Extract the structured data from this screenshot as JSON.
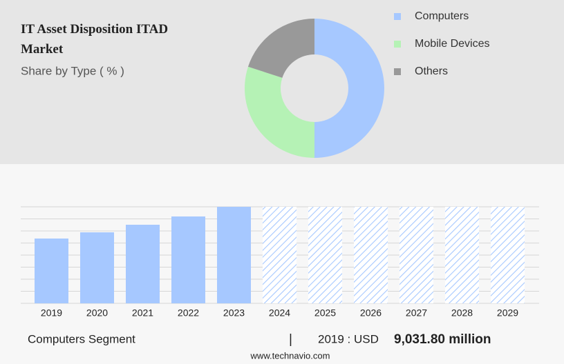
{
  "chart_data": [
    {
      "type": "donut",
      "title": "IT Asset Disposition ITAD Market",
      "subtitle": "Share by Type ( % )",
      "categories": [
        "Computers",
        "Mobile Devices",
        "Others"
      ],
      "values": [
        50,
        30,
        20
      ],
      "colors": [
        "#a6c8ff",
        "#b5f2b5",
        "#999999"
      ],
      "legend": "top-right"
    },
    {
      "type": "bar",
      "categories": [
        "2019",
        "2020",
        "2021",
        "2022",
        "2023",
        "2024",
        "2025",
        "2026",
        "2027",
        "2028",
        "2029"
      ],
      "values": [
        9031.8,
        9896,
        10953,
        12106,
        13451,
        null,
        null,
        null,
        null,
        null,
        null
      ],
      "color": "#a6c8ff",
      "ylim": [
        0,
        13452
      ],
      "yticks": [
        0,
        1681.5,
        3363,
        5044.5,
        6726,
        8407.5,
        10089,
        11770.5,
        13452
      ],
      "grid": true
    }
  ],
  "footer": {
    "segment": "Computers Segment",
    "separator": "|",
    "year_unit": "2019 : USD",
    "value": "9,031.80 million",
    "website": "www.technavio.com"
  }
}
